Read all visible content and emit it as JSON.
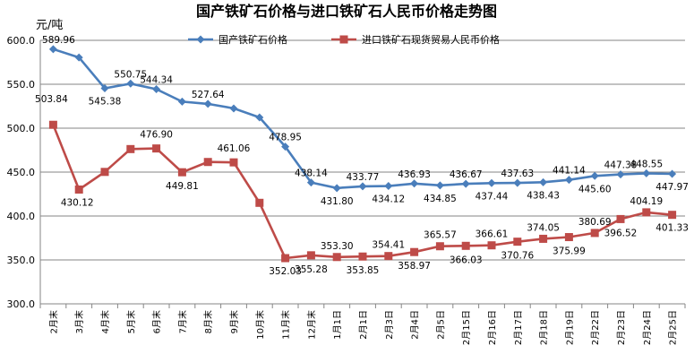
{
  "chart_data": {
    "type": "line",
    "title": "国产铁矿石价格与进口铁矿石人民币价格走势图",
    "ylabel": "元/吨",
    "ylim": [
      300,
      600
    ],
    "yticks": [
      "300.0",
      "350.0",
      "400.0",
      "450.0",
      "500.0",
      "550.0",
      "600.0"
    ],
    "categories": [
      "2月末",
      "3月末",
      "4月末",
      "5月末",
      "6月末",
      "7月末",
      "8月末",
      "9月末",
      "10月末",
      "11月末",
      "12月末",
      "1月1日",
      "2月1日",
      "2月3日",
      "2月4日",
      "2月5日",
      "2月15日",
      "2月16日",
      "2月17日",
      "2月18日",
      "2月19日",
      "2月22日",
      "2月23日",
      "2月24日",
      "2月25日"
    ],
    "grid": true,
    "legend": "top",
    "series": [
      {
        "name": "国产铁矿石价格",
        "color": "#4a7ebb",
        "marker": "diamond",
        "values": [
          589.96,
          580.5,
          545.38,
          550.75,
          544.34,
          530.2,
          527.64,
          522.5,
          512.2,
          478.95,
          438.14,
          431.8,
          433.77,
          434.12,
          436.93,
          434.85,
          436.67,
          437.44,
          437.63,
          438.43,
          441.14,
          445.6,
          447.38,
          448.55,
          447.97
        ],
        "labels": [
          "589.96",
          "",
          "545.38",
          "550.75",
          "544.34",
          "",
          "527.64",
          "",
          "",
          "478.95",
          "438.14",
          "431.80",
          "433.77",
          "434.12",
          "436.93",
          "434.85",
          "436.67",
          "437.44",
          "437.63",
          "438.43",
          "441.14",
          "445.60",
          "447.38",
          "448.55",
          "447.97"
        ]
      },
      {
        "name": "进口铁矿石现货贸易人民币价格",
        "color": "#be4b48",
        "marker": "square",
        "values": [
          503.84,
          430.12,
          450.2,
          476.2,
          476.9,
          449.81,
          461.5,
          461.06,
          415.0,
          352.03,
          355.28,
          353.3,
          353.85,
          354.41,
          358.97,
          365.57,
          366.03,
          366.61,
          370.76,
          374.05,
          375.99,
          380.69,
          396.52,
          404.19,
          401.33
        ],
        "labels": [
          "503.84",
          "430.12",
          "",
          "",
          "476.90",
          "449.81",
          "",
          "461.06",
          "",
          "352.03",
          "355.28",
          "353.30",
          "353.85",
          "354.41",
          "358.97",
          "365.57",
          "366.03",
          "366.61",
          "370.76",
          "374.05",
          "375.99",
          "380.69",
          "396.52",
          "404.19",
          "401.33"
        ]
      }
    ]
  }
}
